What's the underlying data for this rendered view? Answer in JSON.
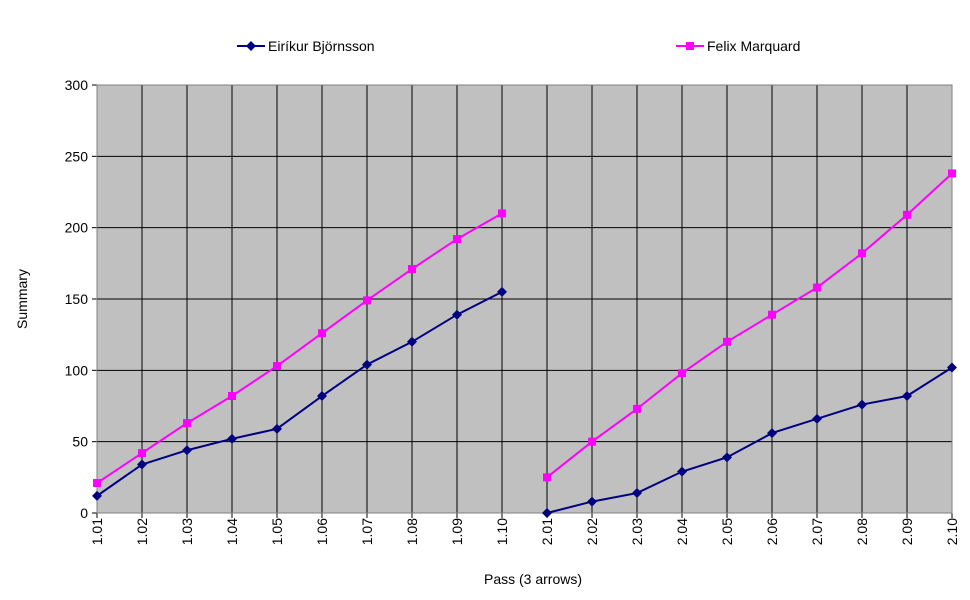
{
  "chart_data": {
    "type": "line",
    "x_label": "Pass (3 arrows)",
    "y_label": "Summary",
    "categories": [
      "1.01",
      "1.02",
      "1.03",
      "1.04",
      "1.05",
      "1.06",
      "1.07",
      "1.08",
      "1.09",
      "1.10",
      "2.01",
      "2.02",
      "2.03",
      "2.04",
      "2.05",
      "2.06",
      "2.07",
      "2.08",
      "2.09",
      "2.10"
    ],
    "series": [
      {
        "name": "Eiríkur Björnsson",
        "color": "#000080",
        "marker": "diamond",
        "values": [
          12,
          34,
          44,
          52,
          59,
          82,
          104,
          120,
          139,
          155,
          0,
          8,
          14,
          29,
          39,
          56,
          66,
          76,
          82,
          102
        ]
      },
      {
        "name": "Felix Marquard",
        "color": "#ff00ff",
        "marker": "square",
        "values": [
          21,
          42,
          63,
          82,
          103,
          126,
          149,
          171,
          192,
          210,
          25,
          50,
          73,
          98,
          120,
          139,
          158,
          182,
          209,
          238
        ]
      }
    ],
    "ylim": [
      0,
      300
    ],
    "yticks": [
      0,
      50,
      100,
      150,
      200,
      250,
      300
    ],
    "grid": true,
    "legend": "top"
  }
}
